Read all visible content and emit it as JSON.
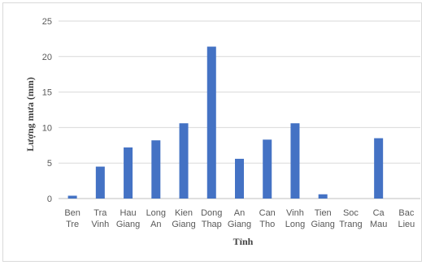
{
  "chart_data": {
    "type": "bar",
    "xlabel": "Tỉnh",
    "ylabel": "Lượng mưa (mm)",
    "ylim": [
      0,
      25
    ],
    "yticks": [
      0,
      5,
      10,
      15,
      20,
      25
    ],
    "grid": true,
    "bar_color": "#4472c4",
    "categories": [
      [
        "Ben",
        "Tre"
      ],
      [
        "Tra",
        "Vinh"
      ],
      [
        "Hau",
        "Giang"
      ],
      [
        "Long",
        "An"
      ],
      [
        "Kien",
        "Giang"
      ],
      [
        "Dong",
        "Thap"
      ],
      [
        "An",
        "Giang"
      ],
      [
        "Can",
        "Tho"
      ],
      [
        "Vinh",
        "Long"
      ],
      [
        "Tien",
        "Giang"
      ],
      [
        "Soc",
        "Trang"
      ],
      [
        "Ca",
        "Mau"
      ],
      [
        "Bac",
        "Lieu"
      ]
    ],
    "values": [
      0.4,
      4.5,
      7.2,
      8.2,
      10.6,
      21.4,
      5.6,
      8.3,
      10.6,
      0.6,
      0,
      8.5,
      0
    ]
  }
}
